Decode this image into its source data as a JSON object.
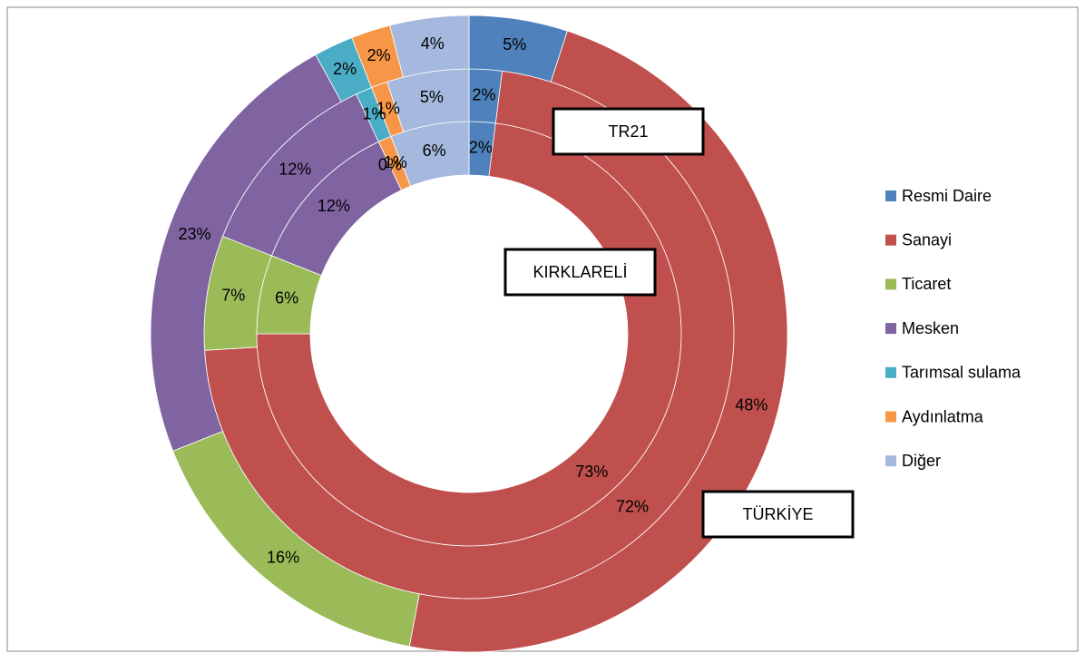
{
  "chart_data": {
    "type": "multi-donut",
    "categories": [
      "Resmi Daire",
      "Sanayi",
      "Ticaret",
      "Mesken",
      "Tarımsal sulama",
      "Aydınlatma",
      "Diğer"
    ],
    "colors": [
      "#4f81bd",
      "#c0504d",
      "#9bbb59",
      "#8064a2",
      "#4bacc6",
      "#f79646",
      "#a5b9de"
    ],
    "rings": [
      {
        "values": [
          2,
          73,
          6,
          12,
          0,
          1,
          6
        ],
        "value_labels": [
          "2%",
          "73%",
          "6%",
          "12%",
          "0%",
          "1%",
          "6%"
        ]
      },
      {
        "values": [
          2,
          72,
          7,
          12,
          1,
          1,
          5
        ],
        "value_labels": [
          "2%",
          "72%",
          "7%",
          "12%",
          "1%",
          "1%",
          "5%"
        ]
      },
      {
        "values": [
          5,
          48,
          16,
          23,
          2,
          2,
          4
        ],
        "value_labels": [
          "5%",
          "48%",
          "16%",
          "23%",
          "2%",
          "2%",
          "4%"
        ]
      }
    ],
    "annotations": [
      "TR21",
      "KIRKLARELİ",
      "TÜRKİYE"
    ],
    "legend": "right"
  }
}
